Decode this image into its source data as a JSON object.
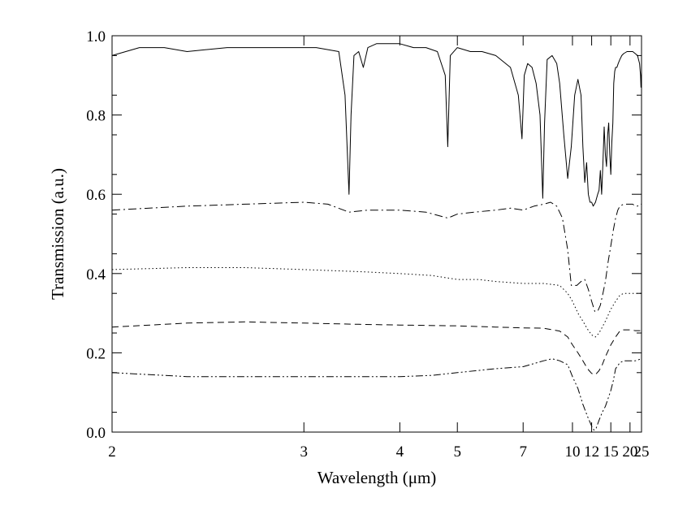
{
  "chart_data": {
    "type": "line",
    "title": "",
    "xlabel": "Wavelength (μm)",
    "ylabel": "Transmission (a.u.)",
    "x_scale": "reciprocal",
    "xlim": [
      2,
      25
    ],
    "ylim": [
      0.0,
      1.0
    ],
    "x_ticks": [
      "2",
      "3",
      "4",
      "5",
      "7",
      "10",
      "12",
      "15",
      "20",
      "25"
    ],
    "y_ticks": [
      "0.0",
      "0.2",
      "0.4",
      "0.6",
      "0.8",
      "1.0"
    ],
    "grid": false,
    "legend": "none",
    "series": [
      {
        "line_style": "solid",
        "x": [
          2.0,
          2.1,
          2.2,
          2.3,
          2.5,
          2.7,
          2.9,
          3.1,
          3.3,
          3.36,
          3.4,
          3.42,
          3.45,
          3.5,
          3.55,
          3.6,
          3.7,
          3.8,
          4.0,
          4.2,
          4.4,
          4.6,
          4.75,
          4.8,
          4.85,
          5.0,
          5.3,
          5.6,
          6.0,
          6.5,
          6.8,
          6.95,
          7.05,
          7.2,
          7.4,
          7.6,
          7.8,
          7.95,
          8.05,
          8.2,
          8.5,
          8.8,
          9.0,
          9.3,
          9.6,
          9.9,
          10.2,
          10.5,
          10.8,
          11.0,
          11.2,
          11.4,
          11.6,
          11.8,
          12.0,
          12.2,
          12.5,
          12.8,
          13.0,
          13.2,
          13.4,
          13.6,
          13.8,
          14.0,
          14.2,
          14.4,
          14.6,
          14.8,
          15.0,
          15.2,
          15.4,
          15.6,
          15.8,
          16.0,
          16.3,
          16.6,
          17.0,
          17.5,
          18.0,
          19.0,
          20.0,
          21.0,
          22.0,
          23.0,
          24.0,
          24.5,
          24.7,
          24.9,
          25.0
        ],
        "y": [
          0.95,
          0.97,
          0.97,
          0.96,
          0.97,
          0.97,
          0.97,
          0.97,
          0.96,
          0.85,
          0.6,
          0.8,
          0.95,
          0.96,
          0.92,
          0.97,
          0.98,
          0.98,
          0.98,
          0.97,
          0.97,
          0.96,
          0.9,
          0.72,
          0.95,
          0.97,
          0.96,
          0.96,
          0.95,
          0.92,
          0.85,
          0.74,
          0.9,
          0.93,
          0.92,
          0.88,
          0.8,
          0.59,
          0.78,
          0.94,
          0.95,
          0.93,
          0.88,
          0.75,
          0.64,
          0.72,
          0.85,
          0.89,
          0.85,
          0.72,
          0.63,
          0.68,
          0.6,
          0.58,
          0.58,
          0.57,
          0.58,
          0.6,
          0.61,
          0.66,
          0.6,
          0.68,
          0.77,
          0.7,
          0.67,
          0.75,
          0.78,
          0.7,
          0.65,
          0.73,
          0.78,
          0.88,
          0.91,
          0.92,
          0.92,
          0.93,
          0.94,
          0.95,
          0.955,
          0.96,
          0.96,
          0.96,
          0.955,
          0.95,
          0.93,
          0.9,
          0.87,
          0.9,
          0.91
        ]
      },
      {
        "line_style": "dash-dot",
        "x": [
          2.0,
          2.3,
          2.6,
          3.0,
          3.2,
          3.4,
          3.6,
          4.0,
          4.4,
          4.8,
          5.0,
          5.4,
          6.0,
          6.5,
          7.0,
          7.5,
          8.0,
          8.4,
          8.8,
          9.2,
          9.6,
          9.9,
          10.1,
          10.4,
          10.8,
          11.2,
          11.6,
          12.0,
          12.4,
          12.8,
          13.2,
          13.6,
          14.0,
          14.5,
          15.0,
          15.5,
          16.0,
          16.5,
          17.0,
          18.0,
          19.0,
          20.0,
          21.0,
          22.0,
          23.0,
          24.0,
          25.0
        ],
        "y": [
          0.56,
          0.57,
          0.575,
          0.58,
          0.575,
          0.555,
          0.56,
          0.56,
          0.555,
          0.54,
          0.55,
          0.555,
          0.56,
          0.565,
          0.56,
          0.57,
          0.575,
          0.58,
          0.57,
          0.54,
          0.46,
          0.37,
          0.37,
          0.37,
          0.38,
          0.385,
          0.36,
          0.33,
          0.305,
          0.305,
          0.32,
          0.35,
          0.38,
          0.43,
          0.47,
          0.51,
          0.54,
          0.56,
          0.57,
          0.575,
          0.575,
          0.575,
          0.575,
          0.57,
          0.57,
          0.575,
          0.575
        ]
      },
      {
        "line_style": "dotted",
        "x": [
          2.0,
          2.3,
          2.6,
          3.0,
          3.5,
          4.0,
          4.5,
          5.0,
          5.5,
          6.0,
          7.0,
          8.0,
          9.0,
          9.6,
          10.0,
          10.5,
          11.0,
          11.5,
          12.0,
          12.5,
          13.0,
          13.5,
          14.0,
          15.0,
          16.0,
          17.0,
          18.0,
          20.0,
          22.0,
          25.0
        ],
        "y": [
          0.41,
          0.415,
          0.415,
          0.41,
          0.405,
          0.4,
          0.395,
          0.385,
          0.385,
          0.38,
          0.375,
          0.375,
          0.37,
          0.35,
          0.33,
          0.3,
          0.28,
          0.26,
          0.245,
          0.24,
          0.25,
          0.265,
          0.28,
          0.31,
          0.33,
          0.345,
          0.35,
          0.35,
          0.35,
          0.35
        ]
      },
      {
        "line_style": "dashed",
        "x": [
          2.0,
          2.3,
          2.6,
          3.0,
          3.5,
          4.0,
          5.0,
          6.0,
          7.0,
          8.0,
          9.0,
          9.6,
          10.0,
          10.5,
          11.0,
          11.5,
          12.0,
          12.5,
          13.0,
          13.5,
          14.0,
          15.0,
          16.0,
          17.0,
          18.0,
          20.0,
          22.0,
          25.0
        ],
        "y": [
          0.265,
          0.275,
          0.278,
          0.275,
          0.272,
          0.27,
          0.268,
          0.265,
          0.263,
          0.262,
          0.255,
          0.24,
          0.22,
          0.2,
          0.18,
          0.16,
          0.148,
          0.145,
          0.155,
          0.17,
          0.19,
          0.22,
          0.24,
          0.255,
          0.258,
          0.258,
          0.256,
          0.256
        ]
      },
      {
        "line_style": "dash-dot-dot",
        "x": [
          2.0,
          2.3,
          2.6,
          3.0,
          3.5,
          4.0,
          4.5,
          5.0,
          6.0,
          7.0,
          8.0,
          8.5,
          9.0,
          9.6,
          10.0,
          10.5,
          11.0,
          11.5,
          12.0,
          12.3,
          12.6,
          13.0,
          13.5,
          14.0,
          14.5,
          15.0,
          15.5,
          16.0,
          17.0,
          18.0,
          20.0,
          22.0,
          25.0
        ],
        "y": [
          0.15,
          0.14,
          0.14,
          0.14,
          0.14,
          0.14,
          0.143,
          0.15,
          0.16,
          0.165,
          0.18,
          0.185,
          0.18,
          0.17,
          0.14,
          0.11,
          0.07,
          0.04,
          0.015,
          0.005,
          0.01,
          0.03,
          0.05,
          0.065,
          0.085,
          0.105,
          0.13,
          0.16,
          0.175,
          0.18,
          0.18,
          0.18,
          0.185
        ]
      }
    ]
  }
}
